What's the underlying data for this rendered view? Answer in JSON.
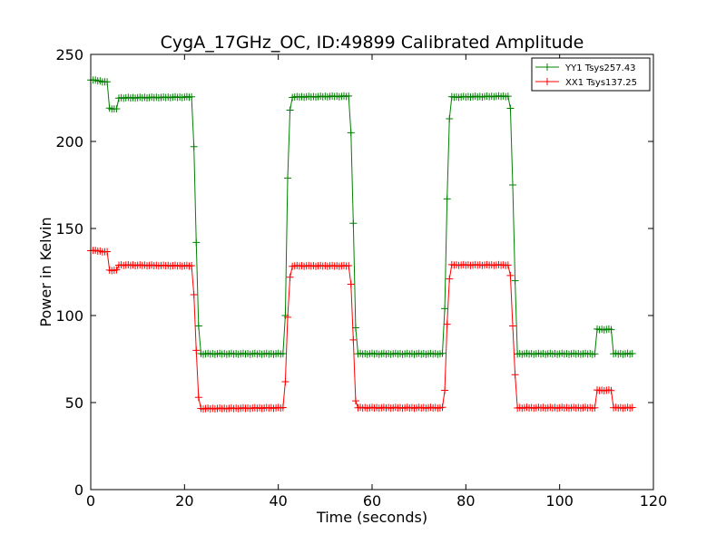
{
  "chart_data": {
    "type": "line",
    "title": "CygA_17GHz_OC, ID:49899 Calibrated Amplitude",
    "xlabel": "Time (seconds)",
    "ylabel": "Power in Kelvin",
    "xlim": [
      0,
      120
    ],
    "ylim": [
      0,
      250
    ],
    "xticks": [
      0,
      20,
      40,
      60,
      80,
      100,
      120
    ],
    "yticks": [
      0,
      50,
      100,
      150,
      200,
      250
    ],
    "grid": false,
    "legend_position": "top-right",
    "marker": "+",
    "series": [
      {
        "name": "YY1 Tsys257.43",
        "color": "#008000",
        "segments": [
          {
            "from": 0,
            "to": 3.5,
            "start": 235.5,
            "end": 234
          },
          {
            "from": 4,
            "to": 5.5,
            "start": 219,
            "end": 218.5
          },
          {
            "from": 6,
            "to": 21.5,
            "start": 225,
            "end": 225.5
          },
          {
            "x": 22,
            "y": 197
          },
          {
            "x": 22.5,
            "y": 142
          },
          {
            "x": 23,
            "y": 94
          },
          {
            "from": 23.5,
            "to": 41,
            "start": 78,
            "end": 78
          },
          {
            "x": 41.5,
            "y": 100
          },
          {
            "x": 42,
            "y": 179
          },
          {
            "x": 42.5,
            "y": 218
          },
          {
            "from": 43,
            "to": 55,
            "start": 225.5,
            "end": 226
          },
          {
            "x": 55.5,
            "y": 205
          },
          {
            "x": 56,
            "y": 153
          },
          {
            "x": 56.5,
            "y": 93
          },
          {
            "from": 57,
            "to": 75,
            "start": 78,
            "end": 78
          },
          {
            "x": 75.5,
            "y": 104
          },
          {
            "x": 76,
            "y": 167
          },
          {
            "x": 76.5,
            "y": 213
          },
          {
            "from": 77,
            "to": 89,
            "start": 225.5,
            "end": 226
          },
          {
            "x": 89.5,
            "y": 219
          },
          {
            "x": 90,
            "y": 175
          },
          {
            "x": 90.5,
            "y": 120
          },
          {
            "from": 91,
            "to": 107.5,
            "start": 78,
            "end": 78
          },
          {
            "from": 108,
            "to": 111,
            "start": 92,
            "end": 92
          },
          {
            "from": 111.5,
            "to": 115.5,
            "start": 78,
            "end": 78
          }
        ]
      },
      {
        "name": "XX1 Tsys137.25",
        "color": "#ff0000",
        "segments": [
          {
            "from": 0,
            "to": 3.5,
            "start": 137.5,
            "end": 136.5
          },
          {
            "from": 4,
            "to": 5.5,
            "start": 126,
            "end": 126
          },
          {
            "from": 6,
            "to": 21.5,
            "start": 129,
            "end": 128.5
          },
          {
            "x": 22,
            "y": 112
          },
          {
            "x": 22.5,
            "y": 80
          },
          {
            "x": 23,
            "y": 53
          },
          {
            "from": 23.5,
            "to": 41,
            "start": 46.5,
            "end": 47
          },
          {
            "x": 41.5,
            "y": 62
          },
          {
            "x": 42,
            "y": 99
          },
          {
            "x": 42.5,
            "y": 122
          },
          {
            "from": 43,
            "to": 55,
            "start": 128.5,
            "end": 128.5
          },
          {
            "x": 55.5,
            "y": 118
          },
          {
            "x": 56,
            "y": 86
          },
          {
            "x": 56.5,
            "y": 51
          },
          {
            "from": 57,
            "to": 75,
            "start": 47,
            "end": 47
          },
          {
            "x": 75.5,
            "y": 57
          },
          {
            "x": 76,
            "y": 95
          },
          {
            "x": 76.5,
            "y": 121
          },
          {
            "from": 77,
            "to": 89,
            "start": 129,
            "end": 129
          },
          {
            "x": 89.5,
            "y": 123
          },
          {
            "x": 90,
            "y": 94
          },
          {
            "x": 90.5,
            "y": 66
          },
          {
            "from": 91,
            "to": 107.5,
            "start": 47,
            "end": 47
          },
          {
            "from": 108,
            "to": 111,
            "start": 57,
            "end": 57
          },
          {
            "from": 111.5,
            "to": 115.5,
            "start": 47,
            "end": 47
          }
        ]
      }
    ]
  }
}
